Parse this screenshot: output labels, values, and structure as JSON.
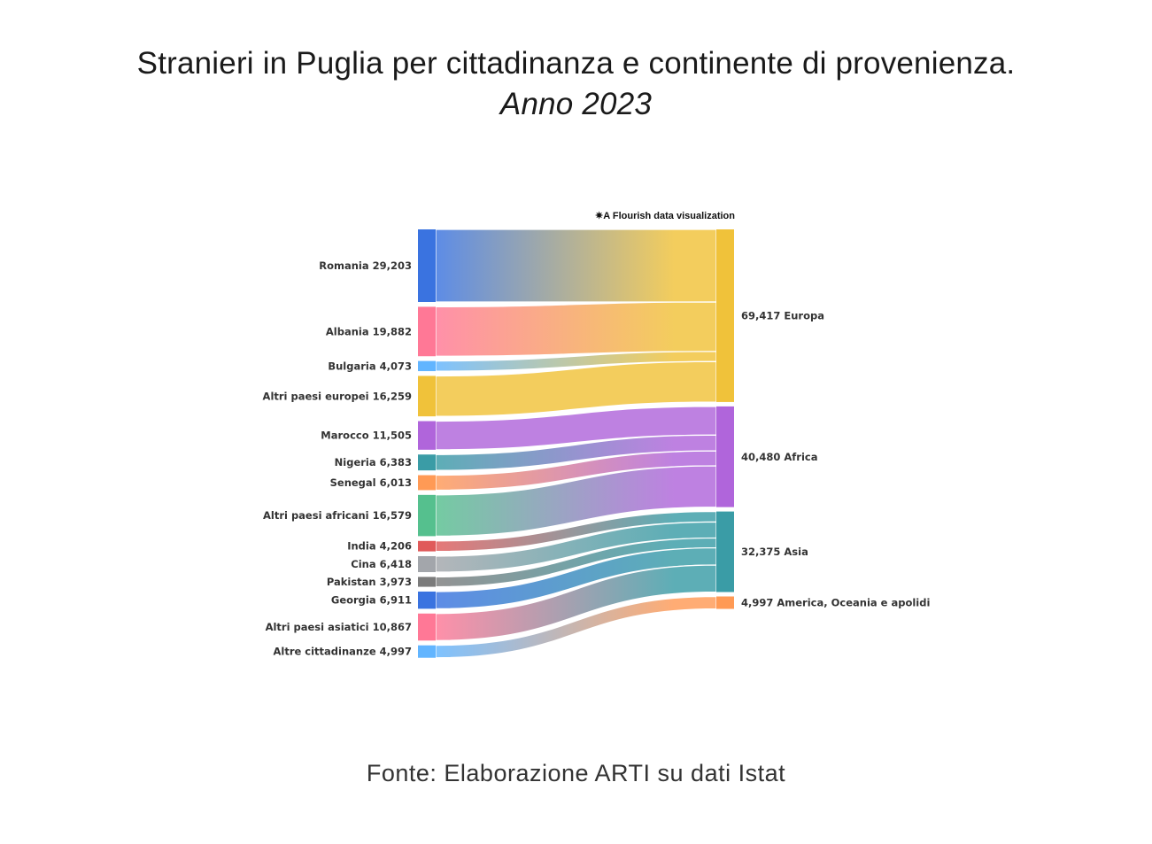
{
  "title": {
    "line1": "Stranieri in Puglia per cittadinanza e continente di provenienza.",
    "line2": "Anno 2023"
  },
  "credit": "✷A Flourish data visualization",
  "source": "Fonte: Elaborazione ARTI su dati Istat",
  "chart_data": {
    "type": "sankey",
    "title": "Stranieri in Puglia per cittadinanza e continente di provenienza. Anno 2023",
    "source_note": "Fonte: Elaborazione ARTI su dati Istat",
    "sources": [
      {
        "name": "Romania",
        "value": 29203,
        "color": "#3a73e0",
        "target": "Europa",
        "label": "Romania 29,203"
      },
      {
        "name": "Albania",
        "value": 19882,
        "color": "#ff7896",
        "target": "Europa",
        "label": "Albania 19,882"
      },
      {
        "name": "Bulgaria",
        "value": 4073,
        "color": "#62b5ff",
        "target": "Europa",
        "label": "Bulgaria 4,073"
      },
      {
        "name": "Altri paesi europei",
        "value": 16259,
        "color": "#f0c23a",
        "target": "Europa",
        "label": "Altri paesi europei 16,259"
      },
      {
        "name": "Marocco",
        "value": 11505,
        "color": "#b065db",
        "target": "Africa",
        "label": "Marocco 11,505"
      },
      {
        "name": "Nigeria",
        "value": 6383,
        "color": "#3a9ca6",
        "target": "Africa",
        "label": "Nigeria 6,383"
      },
      {
        "name": "Senegal",
        "value": 6013,
        "color": "#ff9a55",
        "target": "Africa",
        "label": "Senegal 6,013"
      },
      {
        "name": "Altri paesi africani",
        "value": 16579,
        "color": "#55c08e",
        "target": "Africa",
        "label": "Altri paesi africani 16,579"
      },
      {
        "name": "India",
        "value": 4206,
        "color": "#e05a5a",
        "target": "Asia",
        "label": "India 4,206"
      },
      {
        "name": "Cina",
        "value": 6418,
        "color": "#a3a6ab",
        "target": "Asia",
        "label": "Cina 6,418"
      },
      {
        "name": "Pakistan",
        "value": 3973,
        "color": "#7b7b7b",
        "target": "Asia",
        "label": "Pakistan 3,973"
      },
      {
        "name": "Georgia",
        "value": 6911,
        "color": "#3a73e0",
        "target": "Asia",
        "label": "Georgia 6,911"
      },
      {
        "name": "Altri paesi asiatici",
        "value": 10867,
        "color": "#ff7896",
        "target": "Asia",
        "label": "Altri paesi asiatici 10,867"
      },
      {
        "name": "Altre cittadinanze",
        "value": 4997,
        "color": "#62b5ff",
        "target": "America, Oceania e apolidi",
        "label": "Altre cittadinanze 4,997"
      }
    ],
    "targets": [
      {
        "name": "Europa",
        "value": 69417,
        "color": "#f0c23a",
        "label": "69,417 Europa"
      },
      {
        "name": "Africa",
        "value": 40480,
        "color": "#b065db",
        "label": "40,480 Africa"
      },
      {
        "name": "Asia",
        "value": 32375,
        "color": "#3a9ca6",
        "label": "32,375 Asia"
      },
      {
        "name": "America, Oceania e apolidi",
        "value": 4997,
        "color": "#ff9a55",
        "label": "4,997 America, Oceania e apolidi"
      }
    ]
  }
}
